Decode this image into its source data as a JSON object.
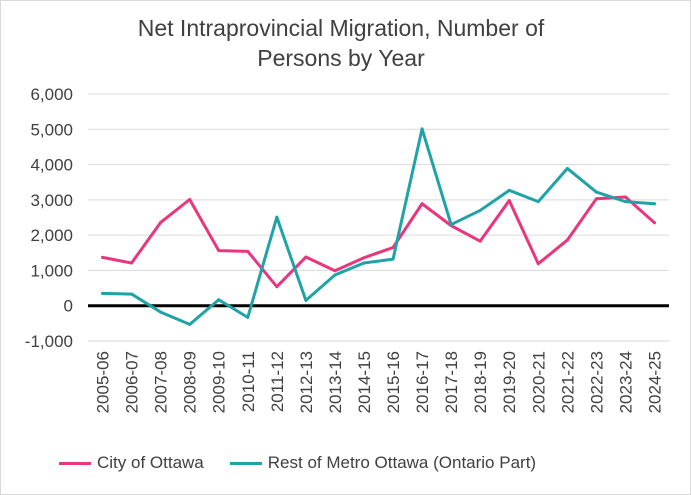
{
  "chart_data": {
    "type": "line",
    "title": [
      "Net Intraprovincial Migration, Number of",
      "Persons by Year"
    ],
    "xlabel": "",
    "ylabel": "",
    "categories": [
      "2005-06",
      "2006-07",
      "2007-08",
      "2008-09",
      "2009-10",
      "2010-11",
      "2011-12",
      "2012-13",
      "2013-14",
      "2014-15",
      "2015-16",
      "2016-17",
      "2017-18",
      "2018-19",
      "2019-20",
      "2020-21",
      "2021-22",
      "2022-23",
      "2023-24",
      "2024-25"
    ],
    "ylim": [
      -1000,
      6000
    ],
    "yticks": [
      6000,
      5000,
      4000,
      3000,
      2000,
      1000,
      0,
      -1000
    ],
    "ytick_labels": [
      "6,000",
      "5,000",
      "4,000",
      "3,000",
      "2,000",
      "1,000",
      "0",
      "-1,000"
    ],
    "grid": "horizontal",
    "legend_position": "bottom",
    "series": [
      {
        "name": "City of Ottawa",
        "color": "#e8377e",
        "values": [
          1370,
          1210,
          2360,
          3010,
          1560,
          1540,
          540,
          1380,
          990,
          1360,
          1650,
          2890,
          2270,
          1830,
          2980,
          1190,
          1860,
          3030,
          3080,
          2350
        ]
      },
      {
        "name": "Rest of Metro Ottawa (Ontario Part)",
        "color": "#1fa3a7",
        "values": [
          350,
          330,
          -180,
          -530,
          170,
          -330,
          2510,
          150,
          870,
          1210,
          1320,
          5010,
          2300,
          2700,
          3270,
          2950,
          3890,
          3220,
          2950,
          2890
        ]
      }
    ]
  }
}
